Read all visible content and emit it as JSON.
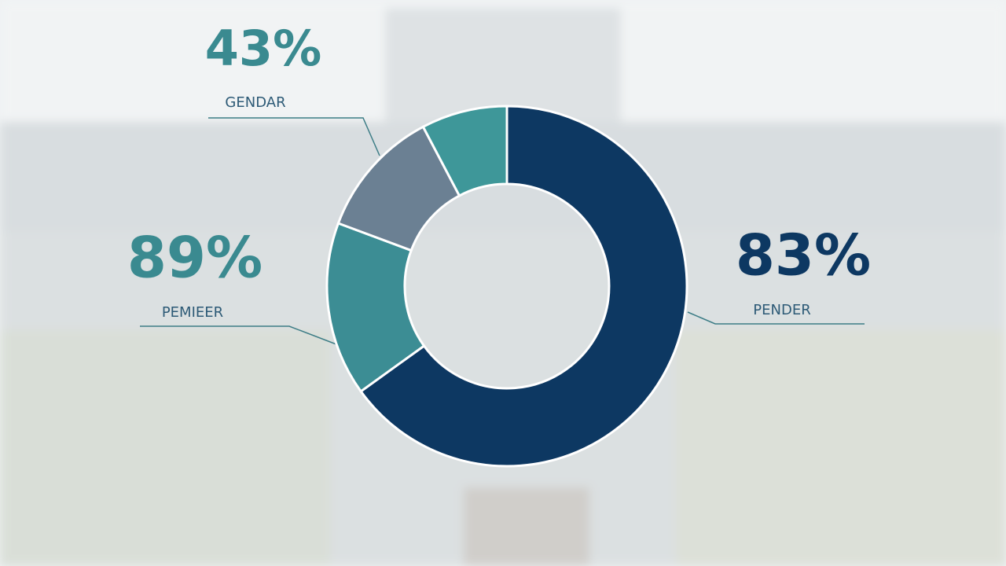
{
  "chart_data": {
    "type": "donut",
    "categories": [
      null,
      null,
      null,
      null
    ],
    "values": [
      65,
      15.6,
      11.6,
      7.7
    ],
    "colors": [
      "#0d3862",
      "#3c8d94",
      "#6b8093",
      "#3e9799"
    ],
    "annotations": [
      {
        "text": "43%",
        "caption": "GENDAR",
        "color": "#3a8a90"
      },
      {
        "text": "89%",
        "caption": "PEMIEER",
        "color": "#3a8a90"
      },
      {
        "text": "83%",
        "caption": "PENDER",
        "color": "#0d3862"
      }
    ]
  }
}
